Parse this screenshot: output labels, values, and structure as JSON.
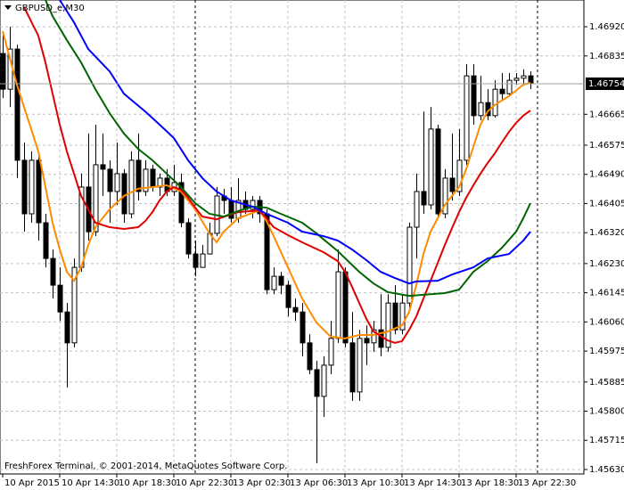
{
  "chart_data": {
    "type": "candlestick",
    "title": "GBPUSD_e,M30",
    "footer": "FreshForex Terminal, © 2001-2014, MetaQuotes Software Corp.",
    "candles": {
      "open": [
        1.46842,
        1.46738,
        1.46855,
        1.46531,
        1.46375,
        1.46531,
        1.46349,
        1.46245,
        1.46167,
        1.46089,
        1.45999,
        1.46219,
        1.46453,
        1.46323,
        1.46518,
        1.46505,
        1.4644,
        1.46492,
        1.46375,
        1.46531,
        1.4644,
        1.46505,
        1.46453,
        1.46479,
        1.4644,
        1.46466,
        1.46349,
        1.46258,
        1.46219,
        1.46258,
        1.46318,
        1.46427,
        1.46414,
        1.46362,
        1.46414,
        1.46388,
        1.46414,
        1.46375,
        1.46154,
        1.46193,
        1.46167,
        1.46102,
        1.46089,
        1.45999,
        1.45921,
        1.45843,
        1.45934,
        1.46012,
        1.46206,
        1.45999,
        1.45856,
        1.46012,
        1.45999,
        1.46037,
        1.45986,
        1.46115,
        1.46037,
        1.46115,
        1.46336,
        1.4644,
        1.46401,
        1.46622,
        1.46375,
        1.46479,
        1.4644,
        1.46531,
        1.46777,
        1.46661,
        1.46699,
        1.46661,
        1.46738,
        1.46725,
        1.46764,
        1.4677,
        1.46777
      ],
      "high": [
        1.46907,
        1.4692,
        1.46868,
        1.46583,
        1.46557,
        1.46544,
        1.46375,
        1.46271,
        1.46219,
        1.46115,
        1.46245,
        1.46492,
        1.46609,
        1.46635,
        1.46609,
        1.46531,
        1.46583,
        1.46505,
        1.46557,
        1.46609,
        1.46531,
        1.46518,
        1.46492,
        1.46505,
        1.46518,
        1.46492,
        1.46362,
        1.46297,
        1.46284,
        1.46349,
        1.46453,
        1.46448,
        1.46453,
        1.46479,
        1.4644,
        1.46427,
        1.46427,
        1.46388,
        1.46219,
        1.46206,
        1.4618,
        1.46128,
        1.46115,
        1.46024,
        1.45947,
        1.4596,
        1.46063,
        1.46271,
        1.46219,
        1.46089,
        1.46037,
        1.4605,
        1.46063,
        1.46141,
        1.46141,
        1.46167,
        1.46141,
        1.46349,
        1.46492,
        1.46673,
        1.46686,
        1.46635,
        1.46505,
        1.46609,
        1.46622,
        1.46811,
        1.46811,
        1.46777,
        1.46738,
        1.46764,
        1.46785,
        1.46785,
        1.46785,
        1.46796,
        1.4679
      ],
      "low": [
        1.46712,
        1.46686,
        1.46479,
        1.46323,
        1.46349,
        1.46297,
        1.46219,
        1.46128,
        1.46063,
        1.45869,
        1.45986,
        1.46206,
        1.46297,
        1.4631,
        1.46427,
        1.46349,
        1.46401,
        1.46349,
        1.46362,
        1.46414,
        1.46427,
        1.4644,
        1.46427,
        1.46427,
        1.46427,
        1.46336,
        1.46245,
        1.46193,
        1.46232,
        1.46297,
        1.4631,
        1.46375,
        1.46349,
        1.46349,
        1.46375,
        1.46362,
        1.46349,
        1.46141,
        1.46141,
        1.46141,
        1.46076,
        1.46063,
        1.4596,
        1.45908,
        1.45648,
        1.45783,
        1.45908,
        1.45999,
        1.45986,
        1.4583,
        1.4583,
        1.45934,
        1.45973,
        1.4596,
        1.45973,
        1.46024,
        1.46024,
        1.46102,
        1.46245,
        1.46375,
        1.46388,
        1.46362,
        1.46362,
        1.46414,
        1.46427,
        1.46518,
        1.46635,
        1.46648,
        1.46648,
        1.46655,
        1.46707,
        1.46718,
        1.46751,
        1.46751,
        1.46738
      ],
      "close": [
        1.46738,
        1.46855,
        1.46531,
        1.46375,
        1.46531,
        1.46349,
        1.46245,
        1.46167,
        1.46089,
        1.45999,
        1.46219,
        1.46453,
        1.46323,
        1.46518,
        1.46505,
        1.4644,
        1.46492,
        1.46375,
        1.46531,
        1.4644,
        1.46505,
        1.46453,
        1.46479,
        1.4644,
        1.46466,
        1.46349,
        1.46258,
        1.46219,
        1.46258,
        1.46318,
        1.46427,
        1.46414,
        1.46362,
        1.46414,
        1.46388,
        1.46414,
        1.46375,
        1.46154,
        1.46193,
        1.46167,
        1.46102,
        1.46089,
        1.45999,
        1.45921,
        1.45843,
        1.45934,
        1.46012,
        1.46206,
        1.45999,
        1.45856,
        1.46012,
        1.45999,
        1.46037,
        1.45986,
        1.46115,
        1.46037,
        1.46115,
        1.46336,
        1.4644,
        1.46401,
        1.46622,
        1.46375,
        1.46479,
        1.4644,
        1.46531,
        1.46777,
        1.46661,
        1.46699,
        1.46661,
        1.46738,
        1.46725,
        1.46764,
        1.4677,
        1.46777,
        1.46754
      ]
    },
    "series": [
      {
        "color": "#ff8c00",
        "x": [
          0,
          1,
          2,
          3,
          4,
          5,
          6,
          7,
          8,
          9,
          10,
          11,
          12,
          13,
          14,
          15,
          17,
          19,
          21,
          23,
          25,
          27,
          29,
          30,
          31,
          33,
          36,
          37,
          38,
          40,
          42,
          44,
          46,
          48,
          50,
          52,
          54,
          56,
          57,
          58,
          59,
          60,
          62,
          64,
          65,
          66,
          67,
          68,
          69,
          71,
          73,
          74
        ],
        "values": [
          1.46907,
          1.46829,
          1.46751,
          1.46686,
          1.46622,
          1.46557,
          1.46453,
          1.46349,
          1.46271,
          1.46206,
          1.4618,
          1.46219,
          1.46284,
          1.46336,
          1.46362,
          1.46388,
          1.46427,
          1.46448,
          1.46453,
          1.46458,
          1.4644,
          1.46388,
          1.46318,
          1.46292,
          1.46323,
          1.46362,
          1.46385,
          1.46354,
          1.4631,
          1.46219,
          1.46128,
          1.46058,
          1.46017,
          1.46012,
          1.46022,
          1.46022,
          1.46032,
          1.4605,
          1.46089,
          1.46167,
          1.46258,
          1.46323,
          1.46401,
          1.46453,
          1.46505,
          1.4657,
          1.46635,
          1.46673,
          1.46692,
          1.46718,
          1.46751,
          1.46757
        ]
      },
      {
        "color": "#e00000",
        "x": [
          3,
          5,
          6,
          7,
          8,
          9,
          10,
          11,
          12,
          13,
          15,
          17,
          19,
          20,
          21,
          22,
          23,
          24,
          25,
          26,
          27,
          28,
          30,
          33,
          36,
          37,
          38,
          40,
          42,
          45,
          47,
          48,
          49,
          50,
          51,
          52,
          54,
          55,
          56,
          57,
          58,
          59,
          60,
          61,
          62,
          63,
          64,
          65,
          66,
          67,
          68,
          69,
          70,
          71,
          72,
          73,
          74
        ],
        "values": [
          1.46977,
          1.46894,
          1.46816,
          1.46725,
          1.46635,
          1.46557,
          1.46492,
          1.46427,
          1.46388,
          1.46349,
          1.46336,
          1.46331,
          1.46336,
          1.46354,
          1.4638,
          1.46414,
          1.4644,
          1.46453,
          1.46445,
          1.46422,
          1.46393,
          1.46367,
          1.46359,
          1.4638,
          1.46385,
          1.46362,
          1.46336,
          1.46313,
          1.46292,
          1.46263,
          1.46237,
          1.46206,
          1.46162,
          1.46115,
          1.46069,
          1.46032,
          1.46006,
          1.45999,
          1.46004,
          1.46037,
          1.46076,
          1.46128,
          1.4618,
          1.46232,
          1.46284,
          1.46333,
          1.4638,
          1.46422,
          1.46458,
          1.46492,
          1.46523,
          1.46551,
          1.46583,
          1.46614,
          1.4664,
          1.46661,
          1.46676
        ]
      },
      {
        "color": "#006400",
        "x": [
          6,
          7,
          9,
          11,
          13,
          15,
          17,
          19,
          21,
          23,
          25,
          27,
          29,
          31,
          33,
          35,
          37,
          39,
          42,
          44,
          47,
          50,
          52,
          54,
          57,
          59,
          62,
          64,
          65,
          66,
          68,
          70,
          72,
          73,
          74
        ],
        "values": [
          1.46998,
          1.46951,
          1.46881,
          1.46816,
          1.46738,
          1.46668,
          1.46609,
          1.46564,
          1.46531,
          1.46492,
          1.46453,
          1.46406,
          1.46375,
          1.46367,
          1.46383,
          1.46396,
          1.46393,
          1.46375,
          1.46349,
          1.46318,
          1.46266,
          1.46206,
          1.46172,
          1.46147,
          1.46136,
          1.46139,
          1.46144,
          1.46154,
          1.4618,
          1.46206,
          1.46237,
          1.46276,
          1.46323,
          1.46362,
          1.46406
        ]
      },
      {
        "color": "#0000ff",
        "x": [
          8,
          10,
          12,
          15,
          17,
          20,
          22,
          24,
          26,
          28,
          30,
          32,
          35,
          37,
          40,
          42,
          45,
          47,
          49,
          51,
          53,
          55,
          57,
          58,
          61,
          63,
          66,
          68,
          71,
          73,
          74
        ],
        "values": [
          1.46998,
          1.46933,
          1.46855,
          1.4679,
          1.46725,
          1.46673,
          1.46635,
          1.46596,
          1.46531,
          1.46479,
          1.4644,
          1.46414,
          1.46396,
          1.46375,
          1.46349,
          1.46323,
          1.4631,
          1.46297,
          1.46271,
          1.4624,
          1.46206,
          1.46188,
          1.46172,
          1.46178,
          1.4618,
          1.46198,
          1.46219,
          1.46245,
          1.46258,
          1.46297,
          1.46323
        ]
      }
    ],
    "bid": 1.46754,
    "bid_color": "#000000",
    "ylim": [
      1.45617,
      1.46998
    ],
    "yticks": [
      {
        "value": 1.4692,
        "label": "1.46920"
      },
      1.46835,
      1.46665,
      1.46575,
      {
        "value": 1.4649,
        "label": "1.46490"
      },
      1.46405,
      {
        "value": 1.4632,
        "label": "1.46320"
      },
      {
        "value": 1.4623,
        "label": "1.46230"
      },
      1.46145,
      {
        "value": 1.4606,
        "label": "1.46060"
      },
      1.45975,
      1.45885,
      {
        "value": 1.458,
        "label": "1.45800"
      },
      1.45715,
      {
        "value": 1.4563,
        "label": "1.45630"
      }
    ],
    "xlim": [
      0,
      81
    ],
    "xticks": [
      {
        "value": 0,
        "label": "10 Apr 2015"
      },
      {
        "value": 8,
        "label": "10 Apr 14:30"
      },
      {
        "value": 16,
        "label": "10 Apr 18:30"
      },
      {
        "value": 24,
        "label": "10 Apr 22:30"
      },
      {
        "value": 32,
        "label": "13 Apr 02:30"
      },
      {
        "value": 40,
        "label": "13 Apr 06:30"
      },
      {
        "value": 48,
        "label": "13 Apr 10:30"
      },
      {
        "value": 56,
        "label": "13 Apr 14:30"
      },
      {
        "value": 64,
        "label": "13 Apr 18:30"
      },
      {
        "value": 72,
        "label": "13 Apr 22:30"
      }
    ],
    "separators": [
      27,
      75
    ],
    "grid": true
  }
}
